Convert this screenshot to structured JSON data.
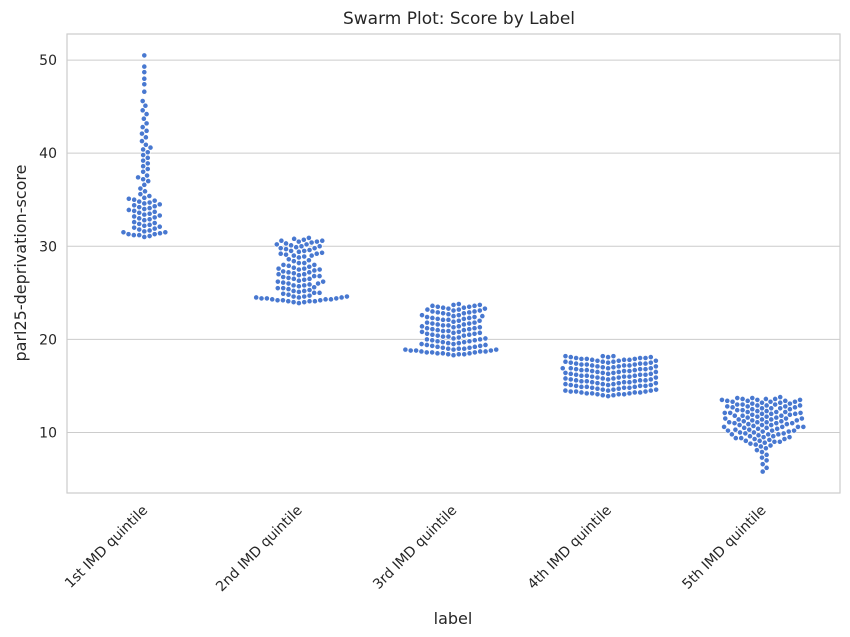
{
  "chart_data": {
    "type": "scatter",
    "subtype": "swarm",
    "title": "Swarm Plot: Score by Label",
    "xlabel": "label",
    "ylabel": "parl25-deprivation-score",
    "categories": [
      "1st IMD quintile",
      "2nd IMD quintile",
      "3rd IMD quintile",
      "4th IMD quintile",
      "5th IMD quintile"
    ],
    "ylim": [
      3.5,
      52.8
    ],
    "yticks": [
      10,
      20,
      30,
      40,
      50
    ],
    "grid": "horizontal",
    "legend": "none",
    "color": "#4878d0",
    "series": [
      {
        "category": "1st IMD quintile",
        "values": [
          31.0,
          31.1,
          31.2,
          31.2,
          31.3,
          31.3,
          31.4,
          31.5,
          31.5,
          31.6,
          31.7,
          31.8,
          31.9,
          32.0,
          32.1,
          32.2,
          32.3,
          32.4,
          32.5,
          32.6,
          32.8,
          32.9,
          33.0,
          33.1,
          33.2,
          33.3,
          33.4,
          33.5,
          33.6,
          33.7,
          33.8,
          33.9,
          34.0,
          34.1,
          34.2,
          34.3,
          34.4,
          34.5,
          34.6,
          34.7,
          34.8,
          34.9,
          35.0,
          35.1,
          35.2,
          35.4,
          35.6,
          35.9,
          36.2,
          36.6,
          37.0,
          37.2,
          37.4,
          37.6,
          38.0,
          38.3,
          38.6,
          38.9,
          39.2,
          39.5,
          39.8,
          40.1,
          40.4,
          40.6,
          40.9,
          41.3,
          41.7,
          42.1,
          42.4,
          42.8,
          43.2,
          43.7,
          44.2,
          44.6,
          45.1,
          45.6,
          46.6,
          47.4,
          48.0,
          48.7,
          49.3,
          50.5
        ]
      },
      {
        "category": "2nd IMD quintile",
        "values": [
          23.9,
          24.0,
          24.0,
          24.1,
          24.1,
          24.2,
          24.2,
          24.3,
          24.3,
          24.4,
          24.4,
          24.5,
          24.5,
          24.6,
          24.6,
          24.7,
          24.8,
          24.9,
          25.0,
          25.1,
          25.2,
          25.3,
          25.4,
          25.5,
          25.6,
          25.7,
          25.8,
          25.9,
          26.0,
          26.1,
          26.2,
          26.3,
          26.4,
          26.5,
          26.6,
          26.7,
          26.8,
          26.9,
          27.0,
          27.1,
          27.2,
          27.3,
          27.4,
          27.5,
          27.6,
          27.7,
          27.8,
          27.9,
          28.0,
          28.2,
          28.4,
          28.6,
          28.8,
          29.0,
          29.1,
          29.2,
          29.3,
          29.4,
          29.5,
          29.6,
          29.7,
          29.8,
          29.9,
          30.0,
          30.1,
          30.2,
          30.3,
          30.4,
          30.5,
          30.6,
          30.7,
          30.8,
          30.9,
          24.1,
          24.3,
          24.5,
          25.0,
          25.5,
          26.0,
          26.5,
          27.0,
          27.5,
          28.0,
          28.5,
          29.0,
          29.5,
          30.0,
          30.5,
          24.4,
          25.2,
          26.2,
          27.2,
          28.2,
          29.2,
          30.2,
          24.6,
          25.8,
          27.6,
          29.8,
          24.2,
          26.8,
          28.9,
          30.6
        ]
      },
      {
        "category": "3rd IMD quintile",
        "values": [
          18.3,
          18.4,
          18.4,
          18.5,
          18.5,
          18.6,
          18.6,
          18.7,
          18.7,
          18.8,
          18.8,
          18.9,
          18.9,
          19.0,
          19.0,
          19.1,
          19.1,
          19.2,
          19.3,
          19.4,
          19.5,
          19.6,
          19.7,
          19.8,
          19.9,
          20.0,
          20.1,
          20.2,
          20.3,
          20.4,
          20.5,
          20.6,
          20.7,
          20.8,
          20.9,
          21.0,
          21.1,
          21.2,
          21.3,
          21.4,
          21.5,
          21.6,
          21.7,
          21.8,
          21.9,
          22.0,
          22.1,
          22.2,
          22.3,
          22.4,
          22.5,
          22.6,
          22.7,
          22.8,
          22.9,
          23.0,
          23.1,
          23.2,
          23.3,
          23.4,
          23.5,
          23.6,
          23.7,
          23.8,
          18.5,
          18.9,
          19.3,
          19.7,
          20.1,
          20.5,
          20.9,
          21.3,
          21.7,
          22.1,
          22.5,
          22.9,
          23.3,
          23.7,
          18.7,
          19.4,
          20.0,
          20.6,
          21.2,
          21.8,
          22.4,
          23.0,
          23.6,
          18.4,
          19.0,
          19.6,
          20.3,
          21.0,
          21.6,
          22.2,
          22.8,
          23.4,
          18.6,
          19.2,
          19.9,
          20.8,
          21.5,
          22.3,
          23.1,
          18.8,
          19.8,
          20.7,
          21.4,
          22.6,
          23.5,
          19.5,
          20.4,
          21.1,
          22.0,
          23.2
        ]
      },
      {
        "category": "4th IMD quintile",
        "values": [
          13.9,
          14.0,
          14.0,
          14.1,
          14.1,
          14.2,
          14.2,
          14.3,
          14.3,
          14.4,
          14.4,
          14.5,
          14.5,
          14.6,
          14.6,
          14.7,
          14.7,
          14.8,
          14.8,
          14.9,
          14.9,
          15.0,
          15.0,
          15.1,
          15.1,
          15.2,
          15.2,
          15.3,
          15.3,
          15.4,
          15.4,
          15.5,
          15.5,
          15.6,
          15.6,
          15.7,
          15.7,
          15.8,
          15.8,
          15.9,
          15.9,
          16.0,
          16.0,
          16.1,
          16.1,
          16.2,
          16.2,
          16.3,
          16.3,
          16.4,
          16.4,
          16.5,
          16.5,
          16.6,
          16.6,
          16.7,
          16.7,
          16.8,
          16.8,
          16.9,
          16.9,
          17.0,
          17.0,
          17.1,
          17.1,
          17.2,
          17.2,
          17.3,
          17.3,
          17.4,
          17.4,
          17.5,
          17.5,
          17.6,
          17.6,
          17.7,
          17.7,
          17.8,
          17.8,
          17.9,
          17.9,
          18.0,
          18.0,
          18.1,
          18.1,
          18.2,
          18.2,
          14.1,
          14.5,
          14.9,
          15.3,
          15.7,
          16.1,
          16.5,
          16.9,
          17.3,
          17.7,
          18.1,
          14.3,
          14.8,
          15.4,
          15.9,
          16.4,
          16.9,
          17.4,
          17.9,
          14.6,
          15.1,
          15.6,
          16.2,
          16.7,
          17.2,
          17.6,
          18.0,
          14.2,
          15.0,
          15.8,
          16.6,
          17.5,
          14.4,
          15.5,
          16.3,
          17.1,
          18.2,
          15.2,
          16.0,
          16.8,
          17.8
        ]
      },
      {
        "category": "5th IMD quintile",
        "values": [
          5.8,
          6.2,
          6.6,
          7.0,
          7.3,
          7.6,
          7.9,
          8.1,
          8.3,
          8.5,
          8.7,
          8.9,
          9.0,
          9.1,
          9.2,
          9.3,
          9.4,
          9.5,
          9.6,
          9.7,
          9.8,
          9.9,
          10.0,
          10.1,
          10.2,
          10.3,
          10.4,
          10.5,
          10.6,
          10.7,
          10.8,
          10.9,
          11.0,
          11.1,
          11.2,
          11.3,
          11.4,
          11.5,
          11.6,
          11.7,
          11.8,
          11.9,
          12.0,
          12.1,
          12.2,
          12.3,
          12.4,
          12.5,
          12.6,
          12.7,
          12.8,
          12.9,
          13.0,
          13.1,
          13.2,
          13.3,
          13.4,
          13.5,
          13.6,
          13.7,
          13.8,
          8.6,
          9.0,
          9.4,
          9.8,
          10.2,
          10.6,
          11.0,
          11.4,
          11.8,
          12.2,
          12.6,
          13.0,
          13.4,
          13.7,
          8.8,
          9.3,
          9.8,
          10.3,
          10.8,
          11.3,
          11.8,
          12.3,
          12.8,
          13.3,
          13.6,
          9.1,
          9.6,
          10.1,
          10.6,
          11.1,
          11.6,
          12.1,
          12.6,
          13.1,
          13.5,
          9.5,
          10.0,
          10.5,
          11.0,
          11.5,
          12.0,
          12.5,
          13.0,
          13.4,
          9.9,
          10.4,
          10.9,
          11.4,
          11.9,
          12.4,
          12.9,
          13.3,
          10.2,
          10.8,
          11.2,
          11.7,
          12.2,
          12.7,
          13.2,
          13.6,
          10.6,
          11.5,
          12.1,
          12.8,
          13.5,
          11.1,
          12.0,
          12.9
        ]
      }
    ]
  }
}
